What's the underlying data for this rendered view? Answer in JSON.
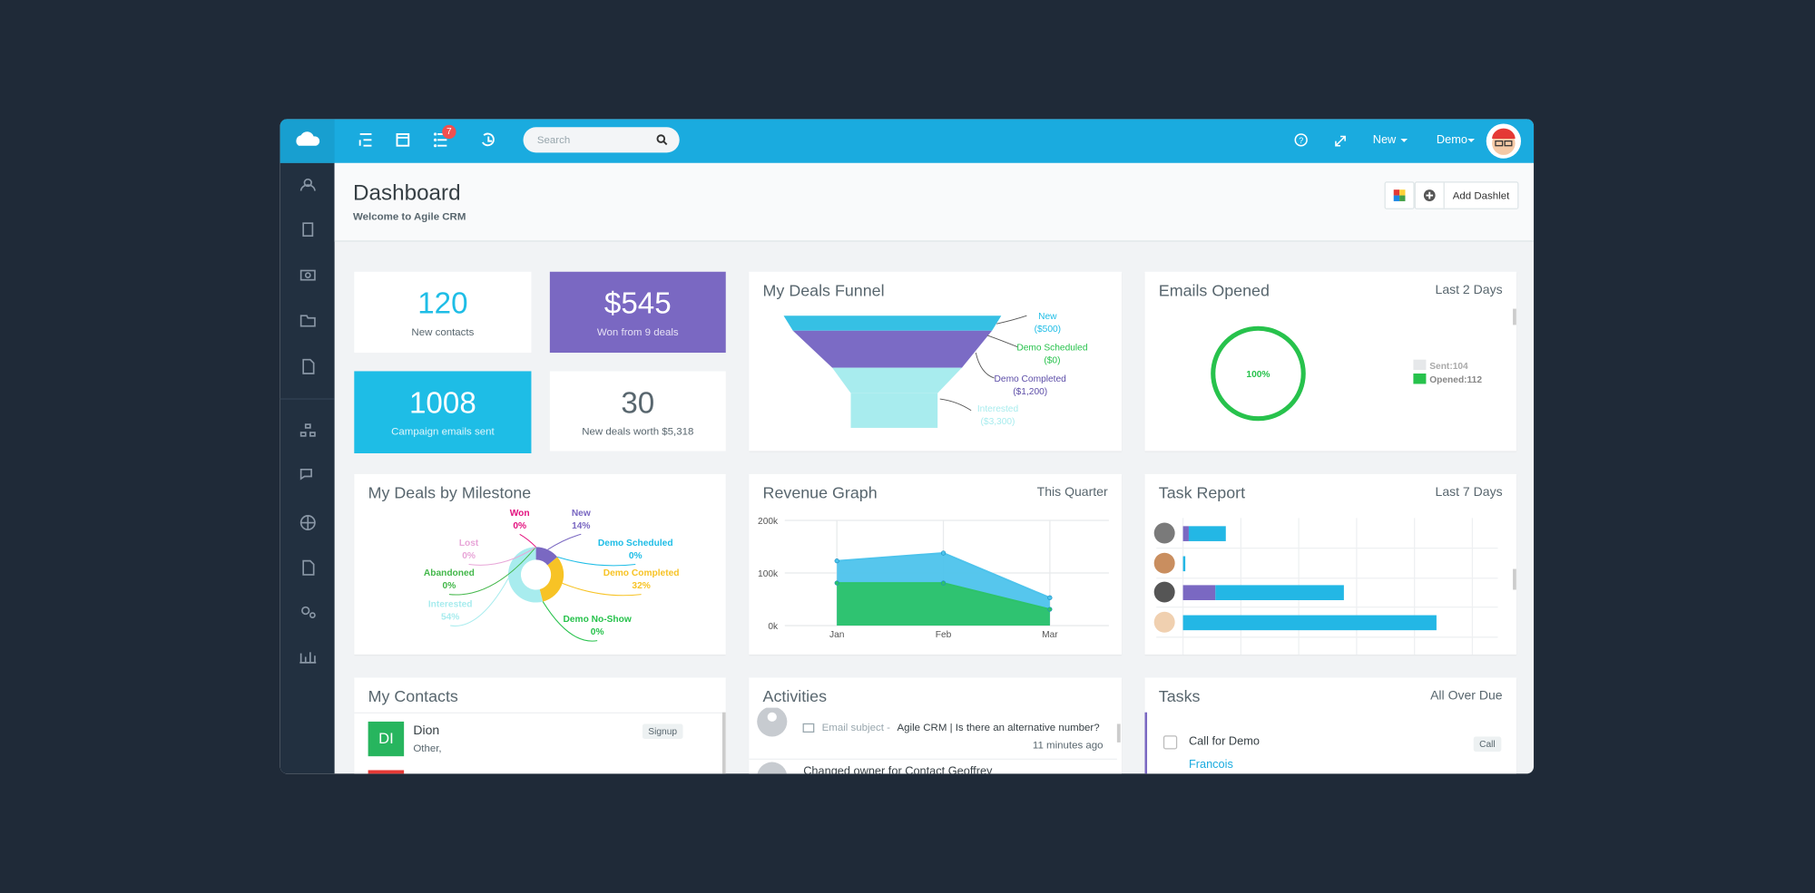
{
  "nav": {
    "badge": "7",
    "search_placeholder": "Search",
    "new_menu": "New",
    "user_menu": "Demo"
  },
  "header": {
    "title": "Dashboard",
    "subtitle": "Welcome to Agile CRM",
    "add_dashlet": "Add Dashlet"
  },
  "stats": [
    {
      "value": "120",
      "label": "New contacts"
    },
    {
      "value": "$545",
      "label": "Won from 9 deals"
    },
    {
      "value": "1008",
      "label": "Campaign emails sent"
    },
    {
      "value": "30",
      "label": "New deals worth $5,318"
    }
  ],
  "funnel": {
    "title": "My Deals Funnel",
    "stages": [
      {
        "label": "New",
        "amount": "($500)"
      },
      {
        "label": "Demo Scheduled",
        "amount": "($0)"
      },
      {
        "label": "Demo Completed",
        "amount": "($1,200)"
      },
      {
        "label": "Interested",
        "amount": "($3,300)"
      }
    ]
  },
  "emails": {
    "title": "Emails Opened",
    "period": "Last 2 Days",
    "rate": "100%",
    "legend": [
      "Sent:104",
      "Opened:112"
    ]
  },
  "milestones": {
    "title": "My Deals by Milestone",
    "slices": [
      {
        "name": "New",
        "value": 14,
        "value_label": "14%",
        "color": "#7a68c2"
      },
      {
        "name": "Demo Scheduled",
        "value": 0,
        "value_label": "0%",
        "color": "#1ebde6"
      },
      {
        "name": "Demo Completed",
        "value": 32,
        "value_label": "32%",
        "color": "#f7c325"
      },
      {
        "name": "Demo No-Show",
        "value": 0,
        "value_label": "0%",
        "color": "#27c24c"
      },
      {
        "name": "Interested",
        "value": 54,
        "value_label": "54%",
        "color": "#a8ecee"
      },
      {
        "name": "Abandoned",
        "value": 0,
        "value_label": "0%",
        "color": "#43b74a"
      },
      {
        "name": "Lost",
        "value": 0,
        "value_label": "0%",
        "color": "#e8a6d8"
      },
      {
        "name": "Won",
        "value": 0,
        "value_label": "0%",
        "color": "#e3127f"
      }
    ]
  },
  "revenue": {
    "title": "Revenue Graph",
    "period": "This Quarter",
    "categories": [
      "Jan",
      "Feb",
      "Mar"
    ],
    "ylim": [
      0,
      200000
    ],
    "yticks": [
      {
        "value": 0,
        "label": "0k"
      },
      {
        "value": 100000,
        "label": "100k"
      },
      {
        "value": 200000,
        "label": "200k"
      }
    ],
    "series": [
      {
        "color": "#4dc3ec",
        "values": [
          123000,
          138000,
          53000
        ]
      },
      {
        "color": "#2dc36a",
        "values": [
          81000,
          81000,
          31000
        ]
      }
    ]
  },
  "task_report": {
    "title": "Task Report",
    "period": "Last 7 Days"
  },
  "contacts": {
    "title": "My Contacts",
    "items": [
      {
        "initials": "DI",
        "name": "Dion",
        "detail": "Other,",
        "tag": "Signup"
      }
    ]
  },
  "activities": {
    "title": "Activities",
    "items": [
      {
        "kind": "Email subject -",
        "text": "Agile CRM | Is there an alternative number?",
        "time": "11 minutes ago"
      },
      {
        "text": "Changed owner for Contact Geoffrey"
      }
    ]
  },
  "tasks": {
    "title": "Tasks",
    "period": "All Over Due",
    "items": [
      {
        "title": "Call for Demo",
        "tag": "Call",
        "contact": "Francois"
      }
    ]
  }
}
